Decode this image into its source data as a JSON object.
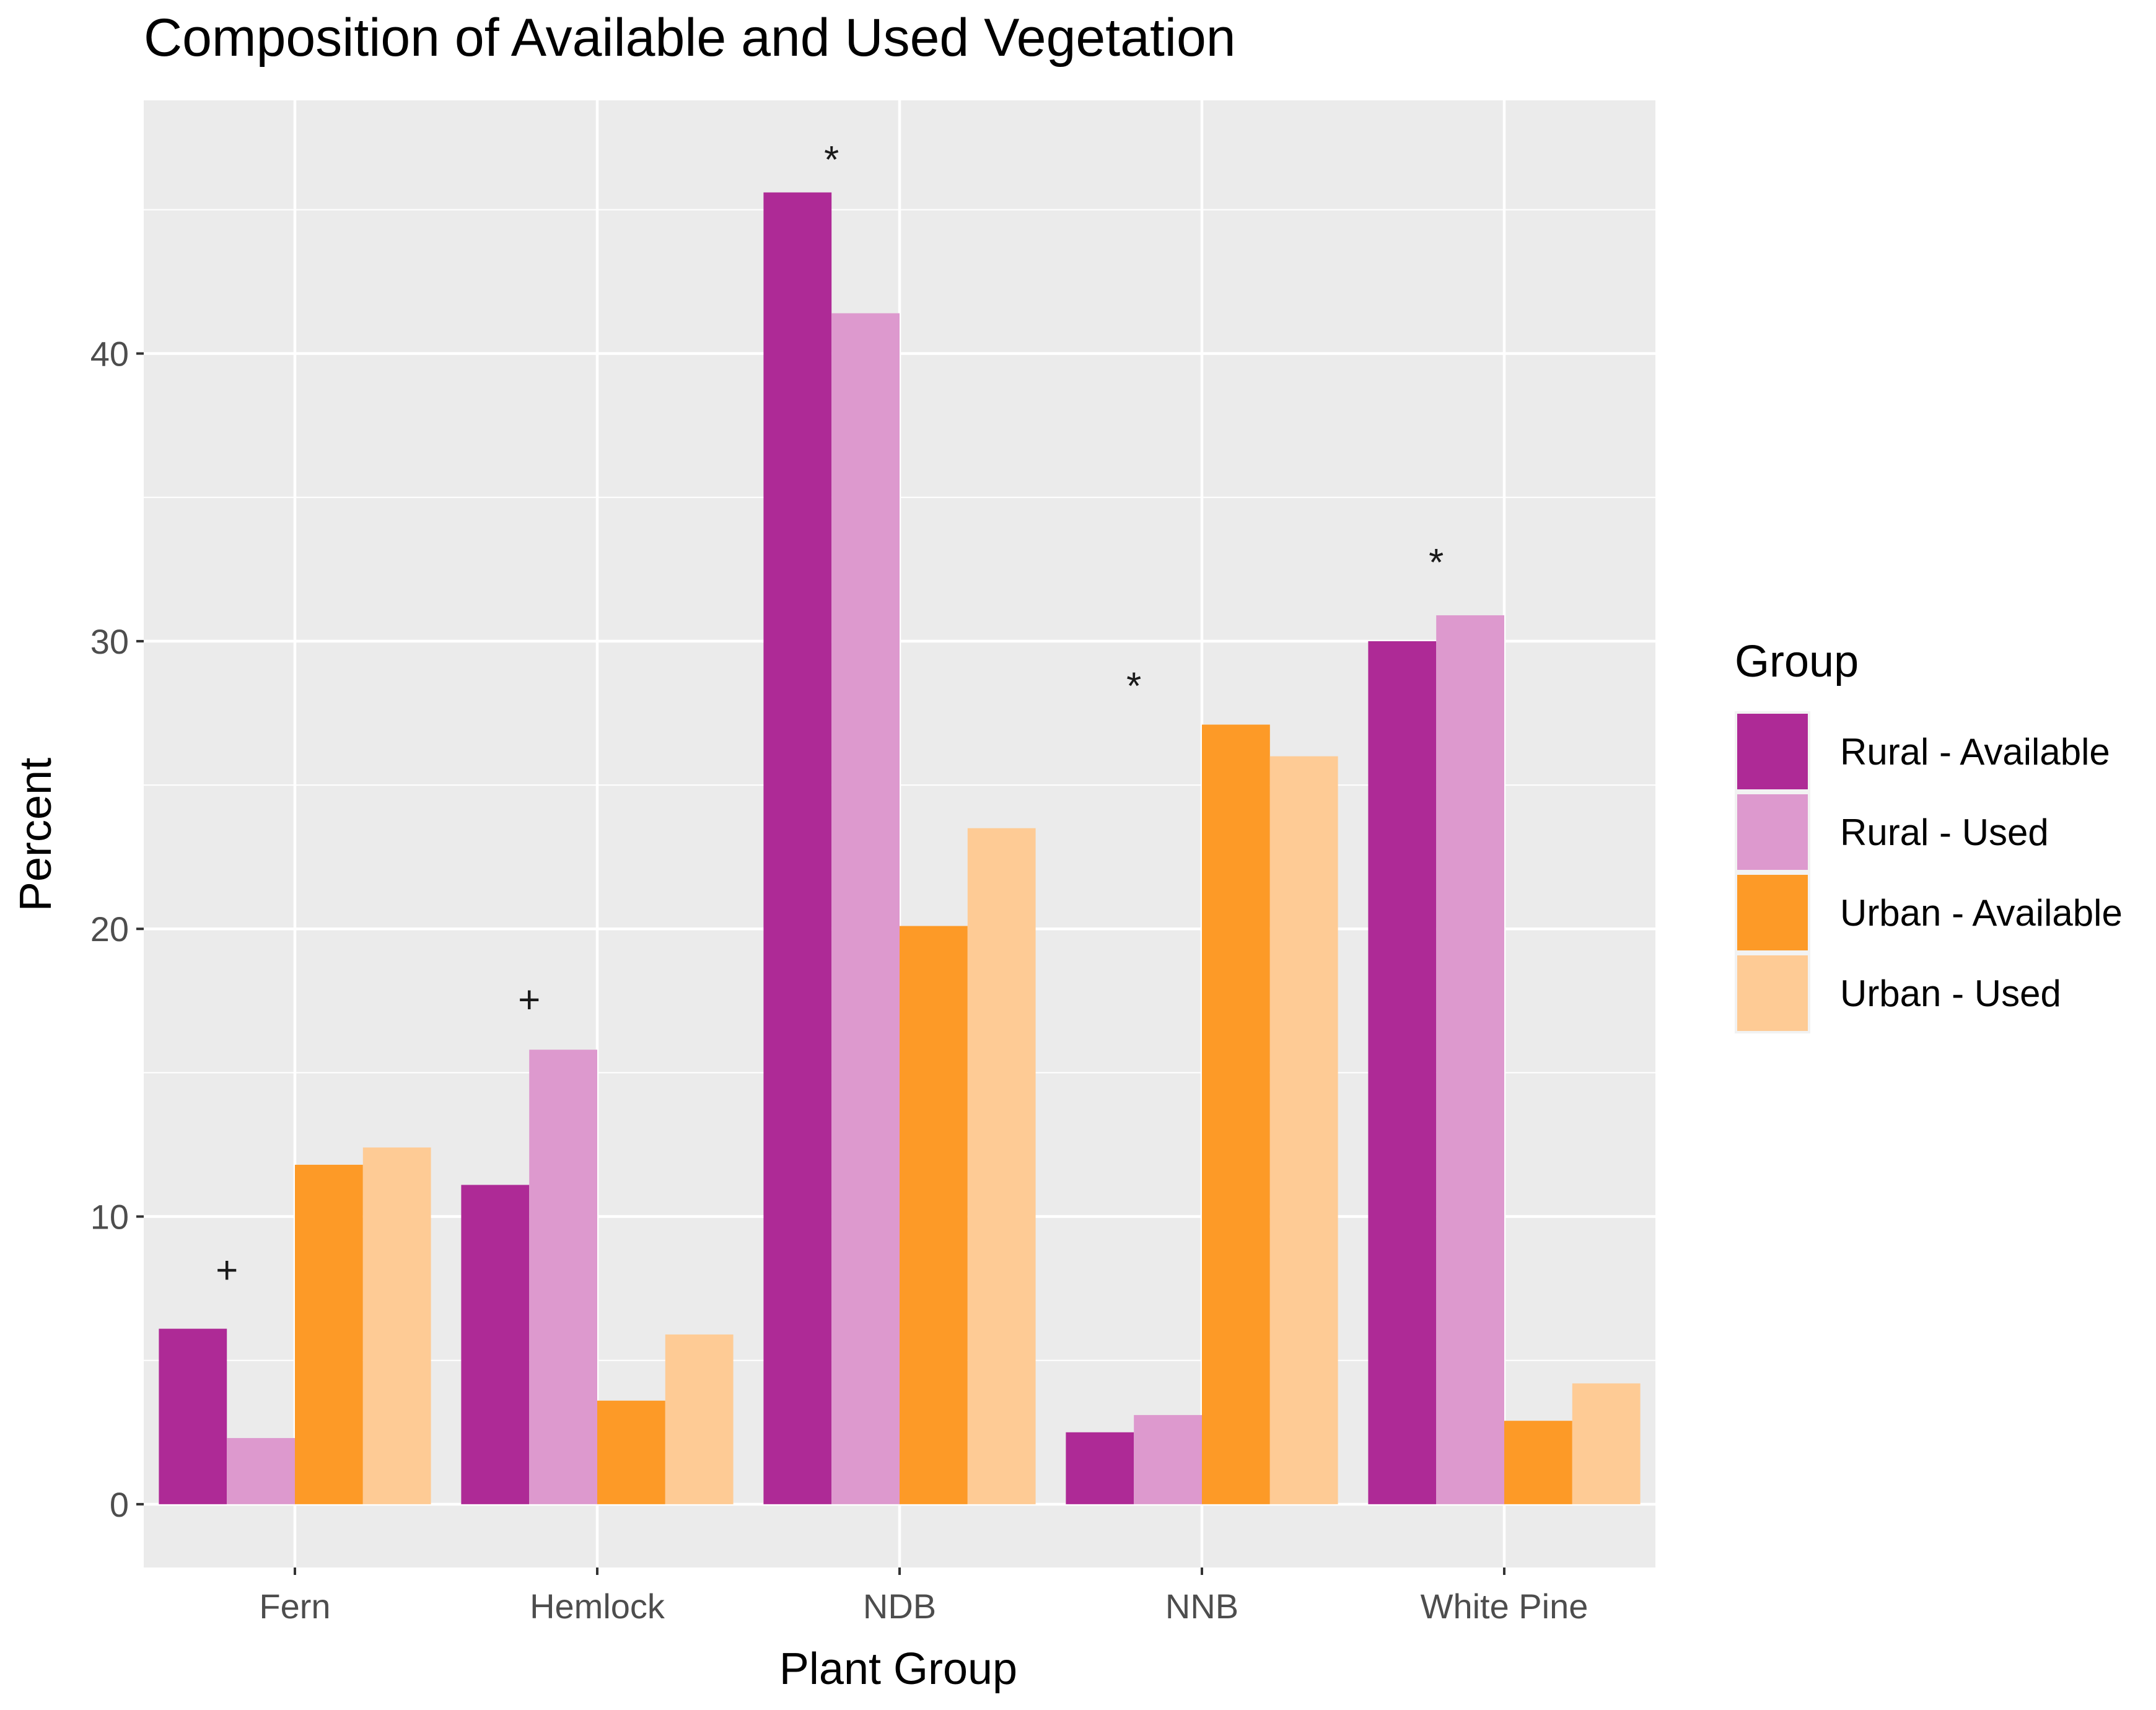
{
  "chart_data": {
    "type": "bar",
    "title": "Composition of Available and Used Vegetation",
    "xlabel": "Plant Group",
    "ylabel": "Percent",
    "categories": [
      "Fern",
      "Hemlock",
      "NDB",
      "NNB",
      "White Pine"
    ],
    "series": [
      {
        "name": "Rural - Available",
        "color": "#AE2A96",
        "values": [
          6.1,
          11.1,
          45.6,
          2.5,
          30.0
        ]
      },
      {
        "name": "Rural - Used",
        "color": "#DD99CE",
        "values": [
          2.3,
          15.8,
          41.4,
          3.1,
          30.9
        ]
      },
      {
        "name": "Urban - Available",
        "color": "#FD9A27",
        "values": [
          11.8,
          3.6,
          20.1,
          27.1,
          2.9
        ]
      },
      {
        "name": "Urban - Used",
        "color": "#FECB95",
        "values": [
          12.4,
          5.9,
          23.5,
          26.0,
          4.2
        ]
      }
    ],
    "ylim": [
      -2.2,
      48.8
    ],
    "yticks": [
      0,
      10,
      20,
      30,
      40
    ],
    "grid": true,
    "legend": {
      "title": "Group",
      "position": "right"
    },
    "annotations": [
      {
        "category": "Fern",
        "text": "+",
        "y": 8.2
      },
      {
        "category": "Hemlock",
        "text": "+",
        "y": 17.6
      },
      {
        "category": "NDB",
        "text": "*",
        "y": 46.8
      },
      {
        "category": "NNB",
        "text": "*",
        "y": 28.5
      },
      {
        "category": "White Pine",
        "text": "*",
        "y": 32.8
      }
    ]
  }
}
